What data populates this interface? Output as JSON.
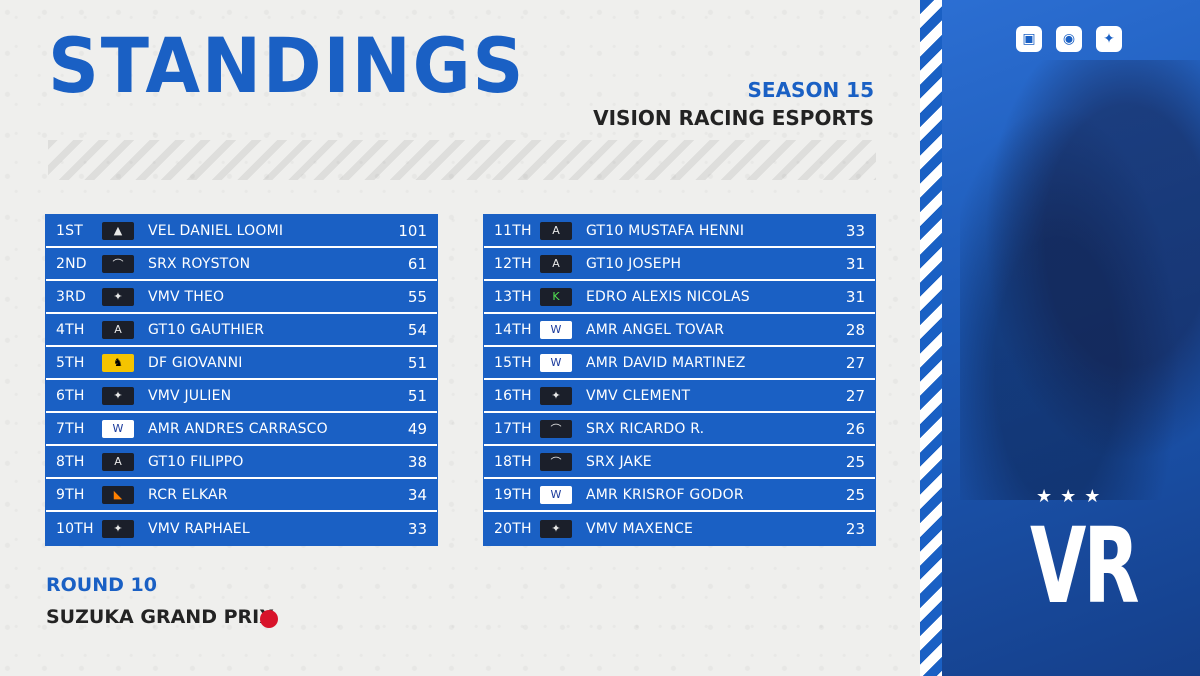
{
  "header": {
    "title": "STANDINGS",
    "season": "SEASON 15",
    "team": "VISION RACING ESPORTS"
  },
  "standings_left": [
    {
      "pos": "1ST",
      "team_logo": "haas-icon",
      "name": "VEL DANIEL LOOMI",
      "points": "101"
    },
    {
      "pos": "2ND",
      "team_logo": "aston-martin-icon",
      "name": "SRX ROYSTON",
      "points": "61"
    },
    {
      "pos": "3RD",
      "team_logo": "mercedes-icon",
      "name": "VMV THEO",
      "points": "55"
    },
    {
      "pos": "4TH",
      "team_logo": "alpine-icon",
      "name": "GT10 GAUTHIER",
      "points": "54"
    },
    {
      "pos": "5TH",
      "team_logo": "ferrari-icon",
      "name": "DF GIOVANNI",
      "points": "51"
    },
    {
      "pos": "6TH",
      "team_logo": "mercedes-icon",
      "name": "VMV JULIEN",
      "points": "51"
    },
    {
      "pos": "7TH",
      "team_logo": "williams-icon",
      "name": "AMR ANDRES CARRASCO",
      "points": "49"
    },
    {
      "pos": "8TH",
      "team_logo": "alpine-icon",
      "name": "GT10 FILIPPO",
      "points": "38"
    },
    {
      "pos": "9TH",
      "team_logo": "mclaren-icon",
      "name": "RCR ELKAR",
      "points": "34"
    },
    {
      "pos": "10TH",
      "team_logo": "mercedes-icon",
      "name": "VMV RAPHAEL",
      "points": "33"
    }
  ],
  "standings_right": [
    {
      "pos": "11TH",
      "team_logo": "alpine-icon",
      "name": "GT10 MUSTAFA HENNI",
      "points": "33"
    },
    {
      "pos": "12TH",
      "team_logo": "alpine-icon",
      "name": "GT10 JOSEPH",
      "points": "31"
    },
    {
      "pos": "13TH",
      "team_logo": "kick-sauber-icon",
      "name": "EDRO ALEXIS NICOLAS",
      "points": "31"
    },
    {
      "pos": "14TH",
      "team_logo": "williams-icon",
      "name": "AMR ANGEL TOVAR",
      "points": "28"
    },
    {
      "pos": "15TH",
      "team_logo": "williams-icon",
      "name": "AMR DAVID MARTINEZ",
      "points": "27"
    },
    {
      "pos": "16TH",
      "team_logo": "mercedes-icon",
      "name": "VMV CLEMENT",
      "points": "27"
    },
    {
      "pos": "17TH",
      "team_logo": "aston-martin-icon",
      "name": "SRX RICARDO R.",
      "points": "26"
    },
    {
      "pos": "18TH",
      "team_logo": "aston-martin-icon",
      "name": "SRX JAKE",
      "points": "25"
    },
    {
      "pos": "19TH",
      "team_logo": "williams-icon",
      "name": "AMR KRISROF GODOR",
      "points": "25"
    },
    {
      "pos": "20TH",
      "team_logo": "mercedes-icon",
      "name": "VMV MAXENCE",
      "points": "23"
    }
  ],
  "footer": {
    "round": "ROUND 10",
    "grand_prix": "SUZUKA GRAND PRIX",
    "flag_icon": "japan-flag-icon"
  },
  "social": {
    "icons": [
      "twitch-icon",
      "discord-icon",
      "twitter-icon"
    ]
  },
  "colors": {
    "accent": "#1a60c4",
    "text_dark": "#232323",
    "background": "#efefed"
  }
}
